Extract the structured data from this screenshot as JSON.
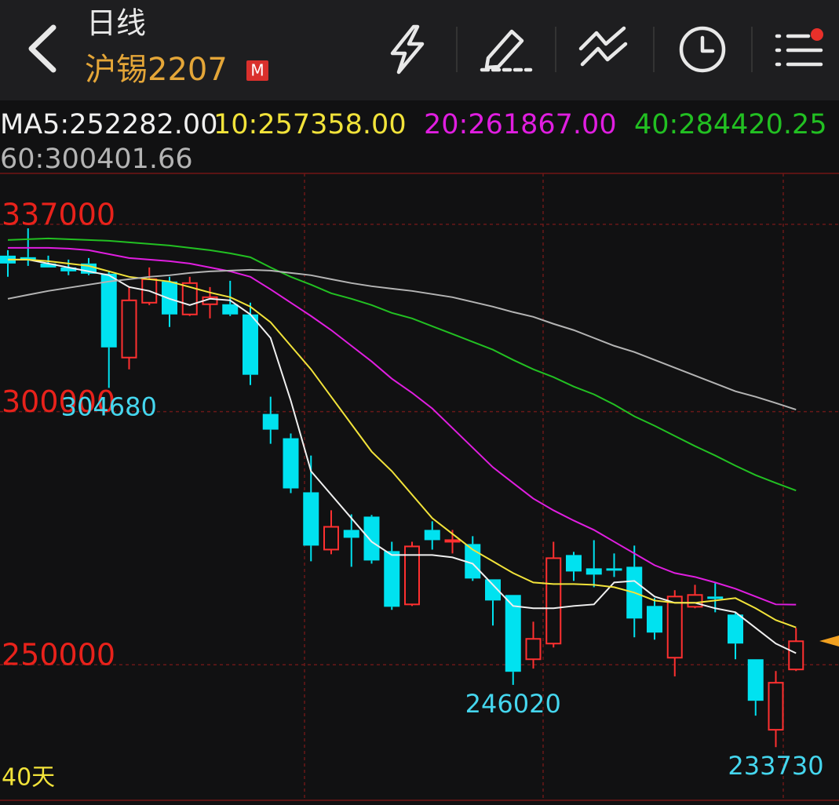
{
  "header": {
    "title": "日线",
    "symbol": "沪锡2207",
    "badge": "M"
  },
  "chart_data": {
    "type": "candlestick",
    "ylim": [
      223220,
      347060
    ],
    "yticks": [
      337000,
      300000,
      250000
    ],
    "grid": true,
    "up_color": "#ff3030",
    "down_color": "#00e2f0",
    "period_label": "40天",
    "candles": {
      "open": [
        330810,
        330500,
        329260,
        328480,
        329260,
        327250,
        310680,
        321520,
        325700,
        319200,
        321210,
        321210,
        319200,
        299540,
        294740,
        284060,
        272750,
        276630,
        279260,
        272450,
        261920,
        276630,
        274300,
        273840,
        266870,
        263780,
        251080,
        254180,
        271670,
        269040,
        269040,
        269350,
        261610,
        251390,
        261450,
        263470,
        259910,
        251080,
        237150,
        249070
      ],
      "high": [
        331890,
        336220,
        330810,
        330030,
        330340,
        327710,
        324610,
        328480,
        326630,
        326630,
        324610,
        325850,
        321520,
        302940,
        295670,
        291330,
        280500,
        279720,
        279570,
        274300,
        274300,
        278330,
        276630,
        275390,
        266870,
        263780,
        258510,
        274300,
        272290,
        274610,
        271980,
        273530,
        263160,
        264710,
        265790,
        266100,
        260370,
        251080,
        248760,
        257270
      ],
      "low": [
        326630,
        328790,
        328480,
        326940,
        326940,
        304680,
        308360,
        321050,
        316720,
        318890,
        318420,
        318890,
        305260,
        293650,
        283900,
        270430,
        271830,
        269350,
        269970,
        260840,
        261610,
        272750,
        271980,
        266560,
        257740,
        246020,
        249230,
        253410,
        266560,
        265320,
        267340,
        255420,
        254950,
        247680,
        261150,
        260370,
        251080,
        239940,
        233730,
        248760
      ],
      "close": [
        329260,
        330030,
        328480,
        327710,
        327250,
        312690,
        321980,
        326160,
        319200,
        325390,
        322600,
        319200,
        307280,
        296440,
        284830,
        273530,
        277240,
        275080,
        270590,
        261450,
        273370,
        274610,
        274610,
        267030,
        262690,
        248610,
        255110,
        271050,
        268420,
        267800,
        268580,
        259130,
        256350,
        263470,
        263780,
        263000,
        254180,
        242880,
        246440,
        254640
      ]
    },
    "series": [
      {
        "name": "MA5:252282.00",
        "color": "#f0f0f0",
        "values": [
          330030,
          330030,
          329260,
          328480,
          327710,
          326940,
          324610,
          323840,
          322290,
          321050,
          322290,
          321980,
          319200,
          314550,
          302170,
          288240,
          283590,
          278950,
          274300,
          271670,
          271670,
          271670,
          271210,
          269970,
          265790,
          261610,
          261150,
          261150,
          261610,
          261920,
          266250,
          266560,
          263470,
          262230,
          262230,
          261150,
          260370,
          257270,
          254180,
          252282
        ]
      },
      {
        "name": "10:257358.00",
        "color": "#f2e33a",
        "values": [
          330030,
          330030,
          329720,
          329260,
          328790,
          327710,
          326630,
          326160,
          325700,
          324610,
          323530,
          322600,
          320740,
          317650,
          313000,
          308360,
          302940,
          297520,
          292110,
          288240,
          283590,
          278950,
          275850,
          272750,
          270430,
          268110,
          266250,
          265940,
          265940,
          265790,
          265320,
          264240,
          262690,
          262230,
          262230,
          262690,
          263160,
          261150,
          258820,
          257358
        ]
      },
      {
        "name": "20:261867.00",
        "color": "#e01ee0",
        "values": [
          332350,
          332350,
          332350,
          332200,
          331890,
          331110,
          330340,
          330030,
          329720,
          329260,
          328480,
          327710,
          326630,
          324150,
          321520,
          318890,
          316100,
          313000,
          309910,
          306500,
          303720,
          300620,
          296750,
          292880,
          289010,
          285910,
          282820,
          280500,
          278480,
          276630,
          274300,
          271980,
          269660,
          268110,
          267340,
          266250,
          265020,
          263470,
          261920,
          261867
        ]
      },
      {
        "name": "40:284420.25",
        "color": "#22c022",
        "values": [
          333900,
          334060,
          334210,
          334060,
          333900,
          333750,
          333440,
          333130,
          332820,
          332350,
          331890,
          331270,
          330500,
          328480,
          326630,
          325080,
          323380,
          322290,
          321050,
          319500,
          318420,
          316870,
          315330,
          313780,
          312230,
          310220,
          308360,
          306810,
          304950,
          303410,
          301390,
          299070,
          297210,
          295200,
          293190,
          291330,
          289320,
          287460,
          285910,
          284420.25
        ]
      },
      {
        "name": "60:300401.66",
        "color": "#b4b4b4",
        "values": [
          322290,
          323070,
          323840,
          324460,
          325080,
          325700,
          326160,
          326630,
          326940,
          327400,
          327710,
          327860,
          328020,
          327860,
          327400,
          326940,
          326160,
          325390,
          324770,
          324300,
          323840,
          323220,
          322600,
          321670,
          320740,
          319660,
          318730,
          317340,
          316100,
          314550,
          313000,
          311770,
          310220,
          308670,
          307120,
          305570,
          304020,
          302940,
          301700,
          300401.66
        ]
      }
    ]
  }
}
